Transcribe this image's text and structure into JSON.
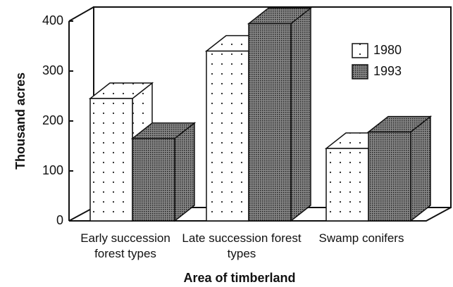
{
  "chart_data": {
    "type": "bar3d",
    "categories": [
      "Early succession forest types",
      "Late succession forest types",
      "Swamp conifers"
    ],
    "series": [
      {
        "name": "1980",
        "color": "#ffffff",
        "values": [
          245,
          340,
          145
        ]
      },
      {
        "name": "1993",
        "color": "#555555",
        "values": [
          165,
          395,
          178
        ]
      }
    ],
    "ylim": [
      0,
      400
    ],
    "yticks": [
      0,
      100,
      200,
      300,
      400
    ],
    "ylabel": "Thousand acres",
    "xlabel": "Area of timberland"
  }
}
